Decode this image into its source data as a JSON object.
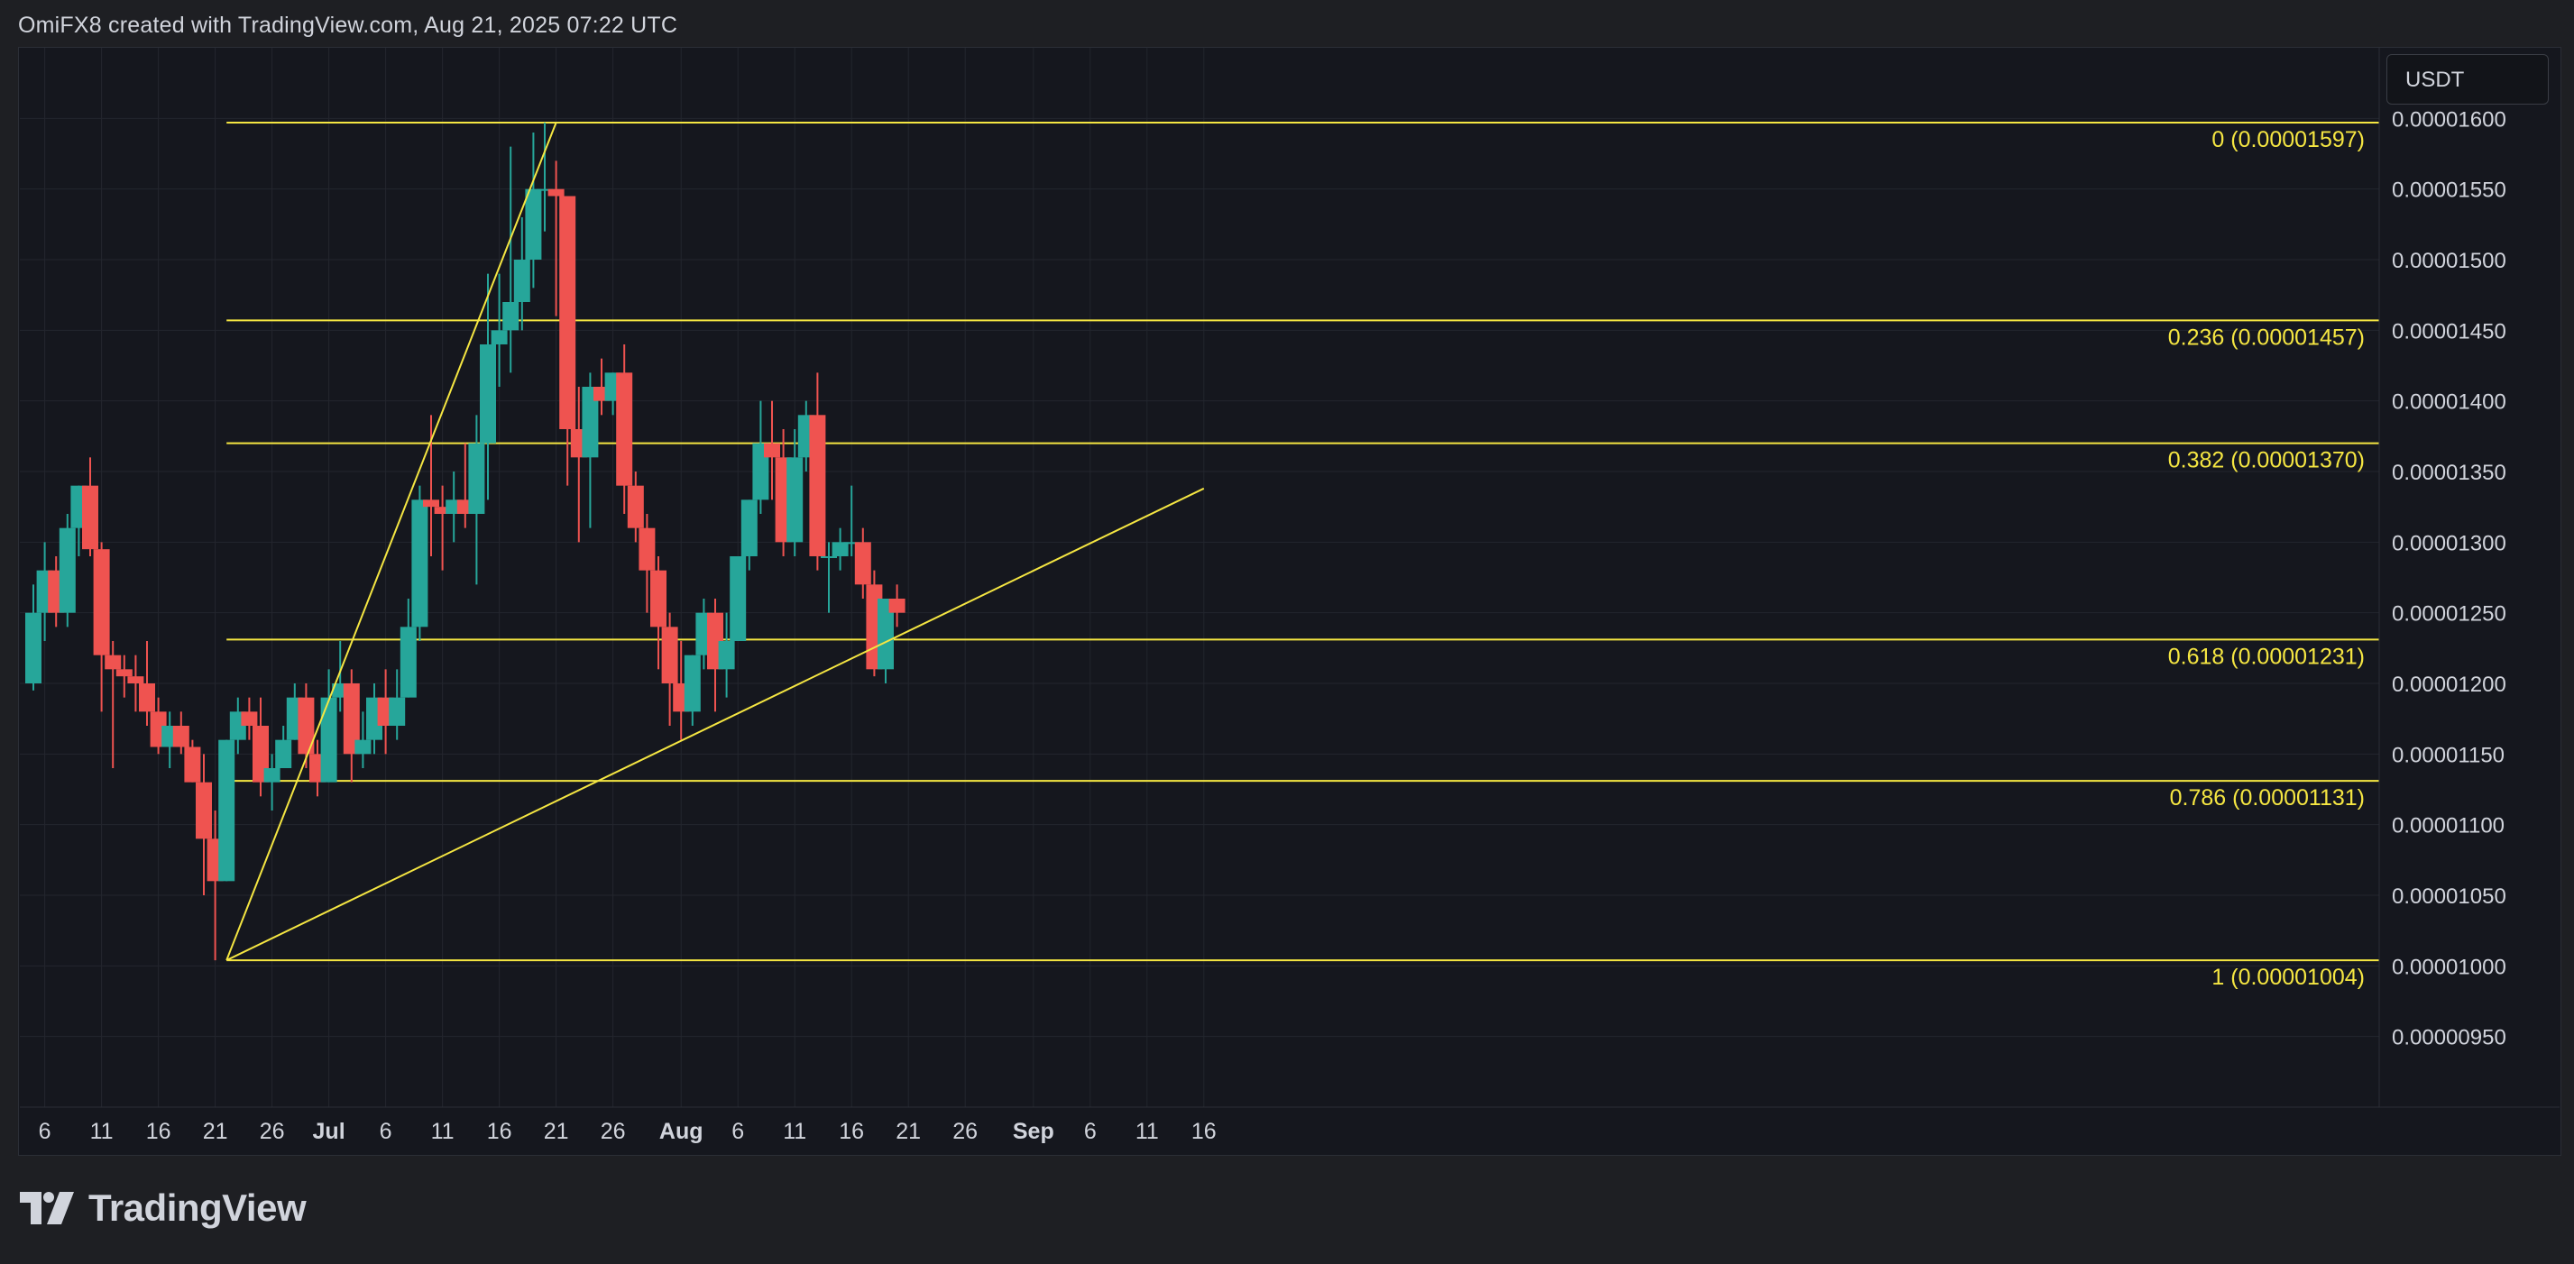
{
  "header": {
    "attribution": "OmiFX8 created with TradingView.com, Aug 21, 2025 07:22 UTC"
  },
  "currency": "USDT",
  "brand": {
    "name": "TradingView",
    "icon": "tradingview-logo-icon"
  },
  "colors": {
    "background": "#15171e",
    "up": "#26a69a",
    "down": "#ef5350",
    "fib": "#f5e642",
    "grid": "#23262e",
    "axis_text": "#d1d4dc"
  },
  "chart_data": {
    "type": "candlestick",
    "title": "",
    "ylim": [
      9e-06,
      1.65e-05
    ],
    "grid": true,
    "x_ticks": [
      "6",
      "11",
      "16",
      "21",
      "26",
      "Jul",
      "6",
      "11",
      "16",
      "21",
      "26",
      "Aug",
      "6",
      "11",
      "16",
      "21",
      "26",
      "Sep",
      "6",
      "11",
      "16"
    ],
    "y_ticks": [
      "0.00001600",
      "0.00001550",
      "0.00001500",
      "0.00001450",
      "0.00001400",
      "0.00001350",
      "0.00001300",
      "0.00001250",
      "0.00001200",
      "0.00001150",
      "0.00001100",
      "0.00001050",
      "0.00001000",
      "0.00000950"
    ],
    "fib_levels": [
      {
        "ratio": "0",
        "price": 1.597e-05,
        "label": "0 (0.00001597)"
      },
      {
        "ratio": "0.236",
        "price": 1.457e-05,
        "label": "0.236 (0.00001457)"
      },
      {
        "ratio": "0.382",
        "price": 1.37e-05,
        "label": "0.382 (0.00001370)"
      },
      {
        "ratio": "0.618",
        "price": 1.231e-05,
        "label": "0.618 (0.00001231)"
      },
      {
        "ratio": "0.786",
        "price": 1.131e-05,
        "label": "0.786 (0.00001131)"
      },
      {
        "ratio": "1",
        "price": 1.004e-05,
        "label": "1 (0.00001004)"
      }
    ],
    "fib_trend": {
      "from": {
        "date": "Jun 22",
        "price": 1.004e-05
      },
      "to": {
        "date": "Jul 21",
        "price": 1.597e-05
      }
    },
    "trendline": {
      "from": {
        "date": "Jun 22",
        "price": 1.004e-05
      },
      "to": {
        "date": "Sep 16",
        "price": 1.338e-05
      }
    },
    "candles": [
      {
        "date": "Jun 5",
        "o": 1.2e-05,
        "h": 1.27e-05,
        "l": 1.195e-05,
        "c": 1.25e-05
      },
      {
        "date": "Jun 6",
        "o": 1.25e-05,
        "h": 1.3e-05,
        "l": 1.23e-05,
        "c": 1.28e-05
      },
      {
        "date": "Jun 7",
        "o": 1.28e-05,
        "h": 1.29e-05,
        "l": 1.24e-05,
        "c": 1.25e-05
      },
      {
        "date": "Jun 8",
        "o": 1.25e-05,
        "h": 1.32e-05,
        "l": 1.24e-05,
        "c": 1.31e-05
      },
      {
        "date": "Jun 9",
        "o": 1.31e-05,
        "h": 1.34e-05,
        "l": 1.29e-05,
        "c": 1.34e-05
      },
      {
        "date": "Jun 10",
        "o": 1.34e-05,
        "h": 1.36e-05,
        "l": 1.29e-05,
        "c": 1.295e-05
      },
      {
        "date": "Jun 11",
        "o": 1.295e-05,
        "h": 1.3e-05,
        "l": 1.18e-05,
        "c": 1.22e-05
      },
      {
        "date": "Jun 12",
        "o": 1.22e-05,
        "h": 1.23e-05,
        "l": 1.14e-05,
        "c": 1.21e-05
      },
      {
        "date": "Jun 13",
        "o": 1.21e-05,
        "h": 1.22e-05,
        "l": 1.19e-05,
        "c": 1.205e-05
      },
      {
        "date": "Jun 14",
        "o": 1.205e-05,
        "h": 1.22e-05,
        "l": 1.18e-05,
        "c": 1.2e-05
      },
      {
        "date": "Jun 15",
        "o": 1.2e-05,
        "h": 1.23e-05,
        "l": 1.17e-05,
        "c": 1.18e-05
      },
      {
        "date": "Jun 16",
        "o": 1.18e-05,
        "h": 1.19e-05,
        "l": 1.15e-05,
        "c": 1.155e-05
      },
      {
        "date": "Jun 17",
        "o": 1.155e-05,
        "h": 1.18e-05,
        "l": 1.14e-05,
        "c": 1.17e-05
      },
      {
        "date": "Jun 18",
        "o": 1.17e-05,
        "h": 1.18e-05,
        "l": 1.15e-05,
        "c": 1.155e-05
      },
      {
        "date": "Jun 19",
        "o": 1.155e-05,
        "h": 1.16e-05,
        "l": 1.13e-05,
        "c": 1.13e-05
      },
      {
        "date": "Jun 20",
        "o": 1.13e-05,
        "h": 1.15e-05,
        "l": 1.05e-05,
        "c": 1.09e-05
      },
      {
        "date": "Jun 21",
        "o": 1.09e-05,
        "h": 1.11e-05,
        "l": 1.004e-05,
        "c": 1.06e-05
      },
      {
        "date": "Jun 22",
        "o": 1.06e-05,
        "h": 1.16e-05,
        "l": 1.06e-05,
        "c": 1.16e-05
      },
      {
        "date": "Jun 23",
        "o": 1.16e-05,
        "h": 1.19e-05,
        "l": 1.15e-05,
        "c": 1.18e-05
      },
      {
        "date": "Jun 24",
        "o": 1.18e-05,
        "h": 1.19e-05,
        "l": 1.16e-05,
        "c": 1.17e-05
      },
      {
        "date": "Jun 25",
        "o": 1.17e-05,
        "h": 1.19e-05,
        "l": 1.12e-05,
        "c": 1.13e-05
      },
      {
        "date": "Jun 26",
        "o": 1.13e-05,
        "h": 1.15e-05,
        "l": 1.11e-05,
        "c": 1.14e-05
      },
      {
        "date": "Jun 27",
        "o": 1.14e-05,
        "h": 1.17e-05,
        "l": 1.14e-05,
        "c": 1.16e-05
      },
      {
        "date": "Jun 28",
        "o": 1.16e-05,
        "h": 1.2e-05,
        "l": 1.16e-05,
        "c": 1.19e-05
      },
      {
        "date": "Jun 29",
        "o": 1.19e-05,
        "h": 1.2e-05,
        "l": 1.14e-05,
        "c": 1.15e-05
      },
      {
        "date": "Jun 30",
        "o": 1.15e-05,
        "h": 1.16e-05,
        "l": 1.12e-05,
        "c": 1.13e-05
      },
      {
        "date": "Jul 1",
        "o": 1.13e-05,
        "h": 1.21e-05,
        "l": 1.13e-05,
        "c": 1.19e-05
      },
      {
        "date": "Jul 2",
        "o": 1.19e-05,
        "h": 1.23e-05,
        "l": 1.18e-05,
        "c": 1.2e-05
      },
      {
        "date": "Jul 3",
        "o": 1.2e-05,
        "h": 1.21e-05,
        "l": 1.13e-05,
        "c": 1.15e-05
      },
      {
        "date": "Jul 4",
        "o": 1.15e-05,
        "h": 1.18e-05,
        "l": 1.14e-05,
        "c": 1.16e-05
      },
      {
        "date": "Jul 5",
        "o": 1.16e-05,
        "h": 1.2e-05,
        "l": 1.15e-05,
        "c": 1.19e-05
      },
      {
        "date": "Jul 6",
        "o": 1.19e-05,
        "h": 1.21e-05,
        "l": 1.15e-05,
        "c": 1.17e-05
      },
      {
        "date": "Jul 7",
        "o": 1.17e-05,
        "h": 1.21e-05,
        "l": 1.16e-05,
        "c": 1.19e-05
      },
      {
        "date": "Jul 8",
        "o": 1.19e-05,
        "h": 1.26e-05,
        "l": 1.19e-05,
        "c": 1.24e-05
      },
      {
        "date": "Jul 9",
        "o": 1.24e-05,
        "h": 1.34e-05,
        "l": 1.23e-05,
        "c": 1.33e-05
      },
      {
        "date": "Jul 10",
        "o": 1.33e-05,
        "h": 1.39e-05,
        "l": 1.29e-05,
        "c": 1.325e-05
      },
      {
        "date": "Jul 11",
        "o": 1.325e-05,
        "h": 1.34e-05,
        "l": 1.28e-05,
        "c": 1.32e-05
      },
      {
        "date": "Jul 12",
        "o": 1.32e-05,
        "h": 1.35e-05,
        "l": 1.3e-05,
        "c": 1.33e-05
      },
      {
        "date": "Jul 13",
        "o": 1.33e-05,
        "h": 1.37e-05,
        "l": 1.31e-05,
        "c": 1.32e-05
      },
      {
        "date": "Jul 14",
        "o": 1.32e-05,
        "h": 1.39e-05,
        "l": 1.27e-05,
        "c": 1.37e-05
      },
      {
        "date": "Jul 15",
        "o": 1.37e-05,
        "h": 1.49e-05,
        "l": 1.33e-05,
        "c": 1.44e-05
      },
      {
        "date": "Jul 16",
        "o": 1.44e-05,
        "h": 1.49e-05,
        "l": 1.41e-05,
        "c": 1.45e-05
      },
      {
        "date": "Jul 17",
        "o": 1.45e-05,
        "h": 1.58e-05,
        "l": 1.42e-05,
        "c": 1.47e-05
      },
      {
        "date": "Jul 18",
        "o": 1.47e-05,
        "h": 1.53e-05,
        "l": 1.45e-05,
        "c": 1.5e-05
      },
      {
        "date": "Jul 19",
        "o": 1.5e-05,
        "h": 1.59e-05,
        "l": 1.48e-05,
        "c": 1.55e-05
      },
      {
        "date": "Jul 20",
        "o": 1.55e-05,
        "h": 1.597e-05,
        "l": 1.52e-05,
        "c": 1.55e-05
      },
      {
        "date": "Jul 21",
        "o": 1.55e-05,
        "h": 1.57e-05,
        "l": 1.46e-05,
        "c": 1.545e-05
      },
      {
        "date": "Jul 22",
        "o": 1.545e-05,
        "h": 1.545e-05,
        "l": 1.34e-05,
        "c": 1.38e-05
      },
      {
        "date": "Jul 23",
        "o": 1.38e-05,
        "h": 1.41e-05,
        "l": 1.3e-05,
        "c": 1.36e-05
      },
      {
        "date": "Jul 24",
        "o": 1.36e-05,
        "h": 1.42e-05,
        "l": 1.31e-05,
        "c": 1.41e-05
      },
      {
        "date": "Jul 25",
        "o": 1.41e-05,
        "h": 1.43e-05,
        "l": 1.39e-05,
        "c": 1.4e-05
      },
      {
        "date": "Jul 26",
        "o": 1.4e-05,
        "h": 1.42e-05,
        "l": 1.39e-05,
        "c": 1.42e-05
      },
      {
        "date": "Jul 27",
        "o": 1.42e-05,
        "h": 1.44e-05,
        "l": 1.32e-05,
        "c": 1.34e-05
      },
      {
        "date": "Jul 28",
        "o": 1.34e-05,
        "h": 1.35e-05,
        "l": 1.3e-05,
        "c": 1.31e-05
      },
      {
        "date": "Jul 29",
        "o": 1.31e-05,
        "h": 1.32e-05,
        "l": 1.25e-05,
        "c": 1.28e-05
      },
      {
        "date": "Jul 30",
        "o": 1.28e-05,
        "h": 1.29e-05,
        "l": 1.21e-05,
        "c": 1.24e-05
      },
      {
        "date": "Jul 31",
        "o": 1.24e-05,
        "h": 1.25e-05,
        "l": 1.17e-05,
        "c": 1.2e-05
      },
      {
        "date": "Aug 1",
        "o": 1.2e-05,
        "h": 1.23e-05,
        "l": 1.16e-05,
        "c": 1.18e-05
      },
      {
        "date": "Aug 2",
        "o": 1.18e-05,
        "h": 1.22e-05,
        "l": 1.17e-05,
        "c": 1.22e-05
      },
      {
        "date": "Aug 3",
        "o": 1.22e-05,
        "h": 1.26e-05,
        "l": 1.21e-05,
        "c": 1.25e-05
      },
      {
        "date": "Aug 4",
        "o": 1.25e-05,
        "h": 1.26e-05,
        "l": 1.18e-05,
        "c": 1.21e-05
      },
      {
        "date": "Aug 5",
        "o": 1.21e-05,
        "h": 1.25e-05,
        "l": 1.19e-05,
        "c": 1.23e-05
      },
      {
        "date": "Aug 6",
        "o": 1.23e-05,
        "h": 1.29e-05,
        "l": 1.23e-05,
        "c": 1.29e-05
      },
      {
        "date": "Aug 7",
        "o": 1.29e-05,
        "h": 1.33e-05,
        "l": 1.28e-05,
        "c": 1.33e-05
      },
      {
        "date": "Aug 8",
        "o": 1.33e-05,
        "h": 1.4e-05,
        "l": 1.32e-05,
        "c": 1.37e-05
      },
      {
        "date": "Aug 9",
        "o": 1.37e-05,
        "h": 1.4e-05,
        "l": 1.33e-05,
        "c": 1.36e-05
      },
      {
        "date": "Aug 10",
        "o": 1.36e-05,
        "h": 1.38e-05,
        "l": 1.29e-05,
        "c": 1.3e-05
      },
      {
        "date": "Aug 11",
        "o": 1.3e-05,
        "h": 1.38e-05,
        "l": 1.29e-05,
        "c": 1.36e-05
      },
      {
        "date": "Aug 12",
        "o": 1.36e-05,
        "h": 1.4e-05,
        "l": 1.35e-05,
        "c": 1.39e-05
      },
      {
        "date": "Aug 13",
        "o": 1.39e-05,
        "h": 1.42e-05,
        "l": 1.28e-05,
        "c": 1.29e-05
      },
      {
        "date": "Aug 14",
        "o": 1.29e-05,
        "h": 1.3e-05,
        "l": 1.25e-05,
        "c": 1.29e-05
      },
      {
        "date": "Aug 15",
        "o": 1.29e-05,
        "h": 1.31e-05,
        "l": 1.28e-05,
        "c": 1.3e-05
      },
      {
        "date": "Aug 16",
        "o": 1.3e-05,
        "h": 1.34e-05,
        "l": 1.29e-05,
        "c": 1.3e-05
      },
      {
        "date": "Aug 17",
        "o": 1.3e-05,
        "h": 1.31e-05,
        "l": 1.26e-05,
        "c": 1.27e-05
      },
      {
        "date": "Aug 18",
        "o": 1.27e-05,
        "h": 1.28e-05,
        "l": 1.205e-05,
        "c": 1.21e-05
      },
      {
        "date": "Aug 19",
        "o": 1.21e-05,
        "h": 1.26e-05,
        "l": 1.2e-05,
        "c": 1.26e-05
      },
      {
        "date": "Aug 20",
        "o": 1.26e-05,
        "h": 1.27e-05,
        "l": 1.24e-05,
        "c": 1.25e-05
      }
    ]
  }
}
